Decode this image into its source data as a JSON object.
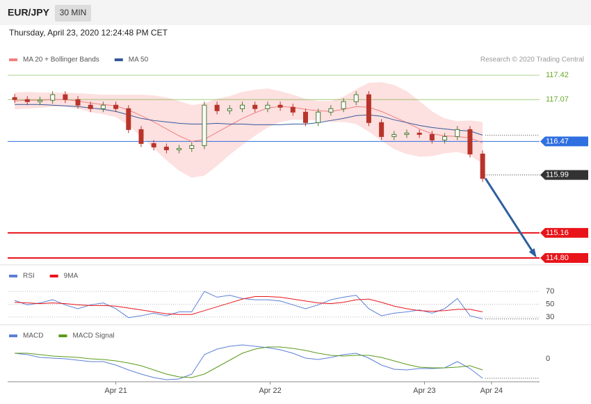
{
  "header": {
    "symbol": "EUR/JPY",
    "timeframe": "30 MIN",
    "timestamp": "Thursday, April 23, 2020 12:24:48 PM CET",
    "credit": "Research © 2020 Trading Central"
  },
  "chart_data": [
    {
      "type": "candlestick",
      "xlim": [
        -0.5,
        41.5
      ],
      "ylim": [
        114.7,
        117.7
      ],
      "candles": {
        "open": [
          117.1,
          117.07,
          117.04,
          117.06,
          117.14,
          117.07,
          116.99,
          116.94,
          116.99,
          116.94,
          116.64,
          116.44,
          116.39,
          116.35,
          116.37,
          116.41,
          116.99,
          116.91,
          116.94,
          116.99,
          116.94,
          116.99,
          116.96,
          116.89,
          116.74,
          116.89,
          116.94,
          117.04,
          117.14,
          116.74,
          116.54,
          116.57,
          116.59,
          116.57,
          116.49,
          116.54,
          116.64,
          116.29
        ],
        "high": [
          117.15,
          117.12,
          117.11,
          117.19,
          117.19,
          117.12,
          117.04,
          117.04,
          117.04,
          116.99,
          116.69,
          116.49,
          116.44,
          116.42,
          116.46,
          117.04,
          117.04,
          116.99,
          117.04,
          117.04,
          117.04,
          117.04,
          117.01,
          116.94,
          116.94,
          116.99,
          117.09,
          117.19,
          117.19,
          116.79,
          116.62,
          116.64,
          116.64,
          116.62,
          116.59,
          116.69,
          116.69,
          116.34
        ],
        "low": [
          117.02,
          116.99,
          116.99,
          117.01,
          117.02,
          116.94,
          116.89,
          116.89,
          116.89,
          116.59,
          116.39,
          116.34,
          116.3,
          116.3,
          116.32,
          116.36,
          116.86,
          116.86,
          116.89,
          116.89,
          116.89,
          116.91,
          116.84,
          116.69,
          116.69,
          116.84,
          116.89,
          116.99,
          116.69,
          116.49,
          116.49,
          116.52,
          116.52,
          116.44,
          116.44,
          116.49,
          116.24,
          115.89
        ],
        "close": [
          117.07,
          117.04,
          117.06,
          117.14,
          117.07,
          116.99,
          116.94,
          116.99,
          116.94,
          116.64,
          116.44,
          116.39,
          116.35,
          116.37,
          116.41,
          116.99,
          116.91,
          116.94,
          116.99,
          116.94,
          116.99,
          116.96,
          116.89,
          116.74,
          116.89,
          116.94,
          117.04,
          117.14,
          116.74,
          116.54,
          116.57,
          116.59,
          116.57,
          116.49,
          116.54,
          116.64,
          116.29,
          115.94
        ],
        "up_color": "#4a7a32",
        "down_color": "#b8342a"
      },
      "bands": {
        "color": "#fde0e0",
        "upper": [
          117.17,
          117.18,
          117.17,
          117.17,
          117.17,
          117.16,
          117.15,
          117.14,
          117.14,
          117.14,
          117.14,
          117.13,
          117.1,
          117.05,
          116.99,
          117.02,
          117.08,
          117.12,
          117.18,
          117.21,
          117.23,
          117.19,
          117.14,
          117.08,
          117.05,
          117.05,
          117.11,
          117.22,
          117.31,
          117.32,
          117.28,
          117.19,
          117.05,
          116.9,
          116.8,
          116.76,
          116.77,
          116.75
        ],
        "lower": [
          116.93,
          116.94,
          116.95,
          116.97,
          116.97,
          116.94,
          116.89,
          116.86,
          116.82,
          116.7,
          116.54,
          116.37,
          116.2,
          116.05,
          115.95,
          115.98,
          116.12,
          116.28,
          116.42,
          116.55,
          116.67,
          116.75,
          116.78,
          116.78,
          116.77,
          116.75,
          116.75,
          116.72,
          116.61,
          116.48,
          116.36,
          116.29,
          116.25,
          116.26,
          116.3,
          116.32,
          116.27,
          116.15
        ]
      },
      "series": [
        {
          "name": "MA 20 + Bollinger Bands",
          "color": "#f08080",
          "values": [
            117.05,
            117.06,
            117.06,
            117.07,
            117.07,
            117.05,
            117.02,
            117.0,
            116.98,
            116.92,
            116.84,
            116.75,
            116.65,
            116.55,
            116.47,
            116.5,
            116.6,
            116.7,
            116.8,
            116.88,
            116.95,
            116.97,
            116.96,
            116.93,
            116.91,
            116.9,
            116.93,
            116.97,
            116.96,
            116.9,
            116.82,
            116.74,
            116.65,
            116.58,
            116.55,
            116.54,
            116.52,
            116.45
          ]
        },
        {
          "name": "MA 50",
          "color": "#34589a",
          "values": [
            117.0,
            117.0,
            117.0,
            116.99,
            116.98,
            116.97,
            116.95,
            116.93,
            116.9,
            116.85,
            116.8,
            116.77,
            116.75,
            116.73,
            116.72,
            116.72,
            116.73,
            116.72,
            116.72,
            116.71,
            116.71,
            116.71,
            116.72,
            116.72,
            116.74,
            116.77,
            116.8,
            116.84,
            116.85,
            116.83,
            116.78,
            116.74,
            116.7,
            116.67,
            116.65,
            116.63,
            116.62,
            116.56
          ]
        }
      ],
      "levels": [
        {
          "value": 117.42,
          "color": "#6aaa2a",
          "style": "text"
        },
        {
          "value": 117.07,
          "color": "#6aaa2a",
          "style": "text"
        },
        {
          "value": 116.47,
          "color": "#2f6fe0",
          "style": "box"
        },
        {
          "value": 115.99,
          "color": "#333333",
          "style": "current"
        },
        {
          "value": 115.16,
          "color": "#e8141a",
          "style": "box"
        },
        {
          "value": 114.8,
          "label": "114.80",
          "color": "#e8141a",
          "style": "box"
        }
      ]
    },
    {
      "type": "line",
      "xlim": [
        -0.5,
        41.5
      ],
      "ylim": [
        19,
        93
      ],
      "yticks": [
        30,
        50,
        70
      ],
      "grid": true,
      "series": [
        {
          "name": "RSI",
          "color": "#5b7fd6",
          "values": [
            56,
            49,
            52,
            57,
            49,
            43,
            49,
            52,
            43,
            29,
            32,
            36,
            32,
            38,
            38,
            70,
            61,
            64,
            59,
            57,
            57,
            55,
            49,
            43,
            49,
            57,
            61,
            64,
            43,
            32,
            36,
            38,
            41,
            36,
            43,
            59,
            32,
            27
          ]
        },
        {
          "name": "9MA",
          "color": "#e8141a",
          "values": [
            53,
            52,
            51,
            52,
            51,
            49,
            48,
            48,
            47,
            44,
            41,
            38,
            35,
            34,
            34,
            40,
            46,
            52,
            58,
            62,
            62,
            61,
            58,
            55,
            52,
            51,
            53,
            57,
            58,
            53,
            47,
            43,
            40,
            39,
            40,
            42,
            42,
            38
          ]
        }
      ]
    },
    {
      "type": "line",
      "xlim": [
        -0.5,
        41.5
      ],
      "ylim": [
        -0.16,
        0.14
      ],
      "yticks": [
        0
      ],
      "xticks": [
        {
          "value": 8,
          "label": "Apr 21"
        },
        {
          "value": 20.2,
          "label": "Apr 22"
        },
        {
          "value": 32.4,
          "label": "Apr 23"
        },
        {
          "value": 37.7,
          "label": "Apr 24"
        }
      ],
      "series": [
        {
          "name": "MACD",
          "color": "#5b7fd6",
          "values": [
            0.04,
            0.03,
            0.01,
            0.005,
            0,
            -0.01,
            -0.02,
            -0.02,
            -0.045,
            -0.08,
            -0.11,
            -0.135,
            -0.15,
            -0.145,
            -0.11,
            0.03,
            0.07,
            0.09,
            0.1,
            0.09,
            0.08,
            0.065,
            0.04,
            0.005,
            -0.005,
            0.01,
            0.03,
            0.04,
            0.005,
            -0.045,
            -0.075,
            -0.08,
            -0.07,
            -0.07,
            -0.065,
            -0.02,
            -0.07,
            -0.14
          ]
        },
        {
          "name": "MACD Signal",
          "color": "#5a9a1a",
          "values": [
            0.04,
            0.04,
            0.03,
            0.02,
            0.015,
            0.01,
            0,
            -0.005,
            -0.015,
            -0.03,
            -0.05,
            -0.08,
            -0.11,
            -0.13,
            -0.135,
            -0.11,
            -0.06,
            -0.01,
            0.04,
            0.07,
            0.085,
            0.085,
            0.075,
            0.06,
            0.04,
            0.025,
            0.02,
            0.025,
            0.025,
            0.01,
            -0.015,
            -0.04,
            -0.06,
            -0.065,
            -0.065,
            -0.06,
            -0.05,
            -0.08
          ]
        }
      ]
    }
  ]
}
